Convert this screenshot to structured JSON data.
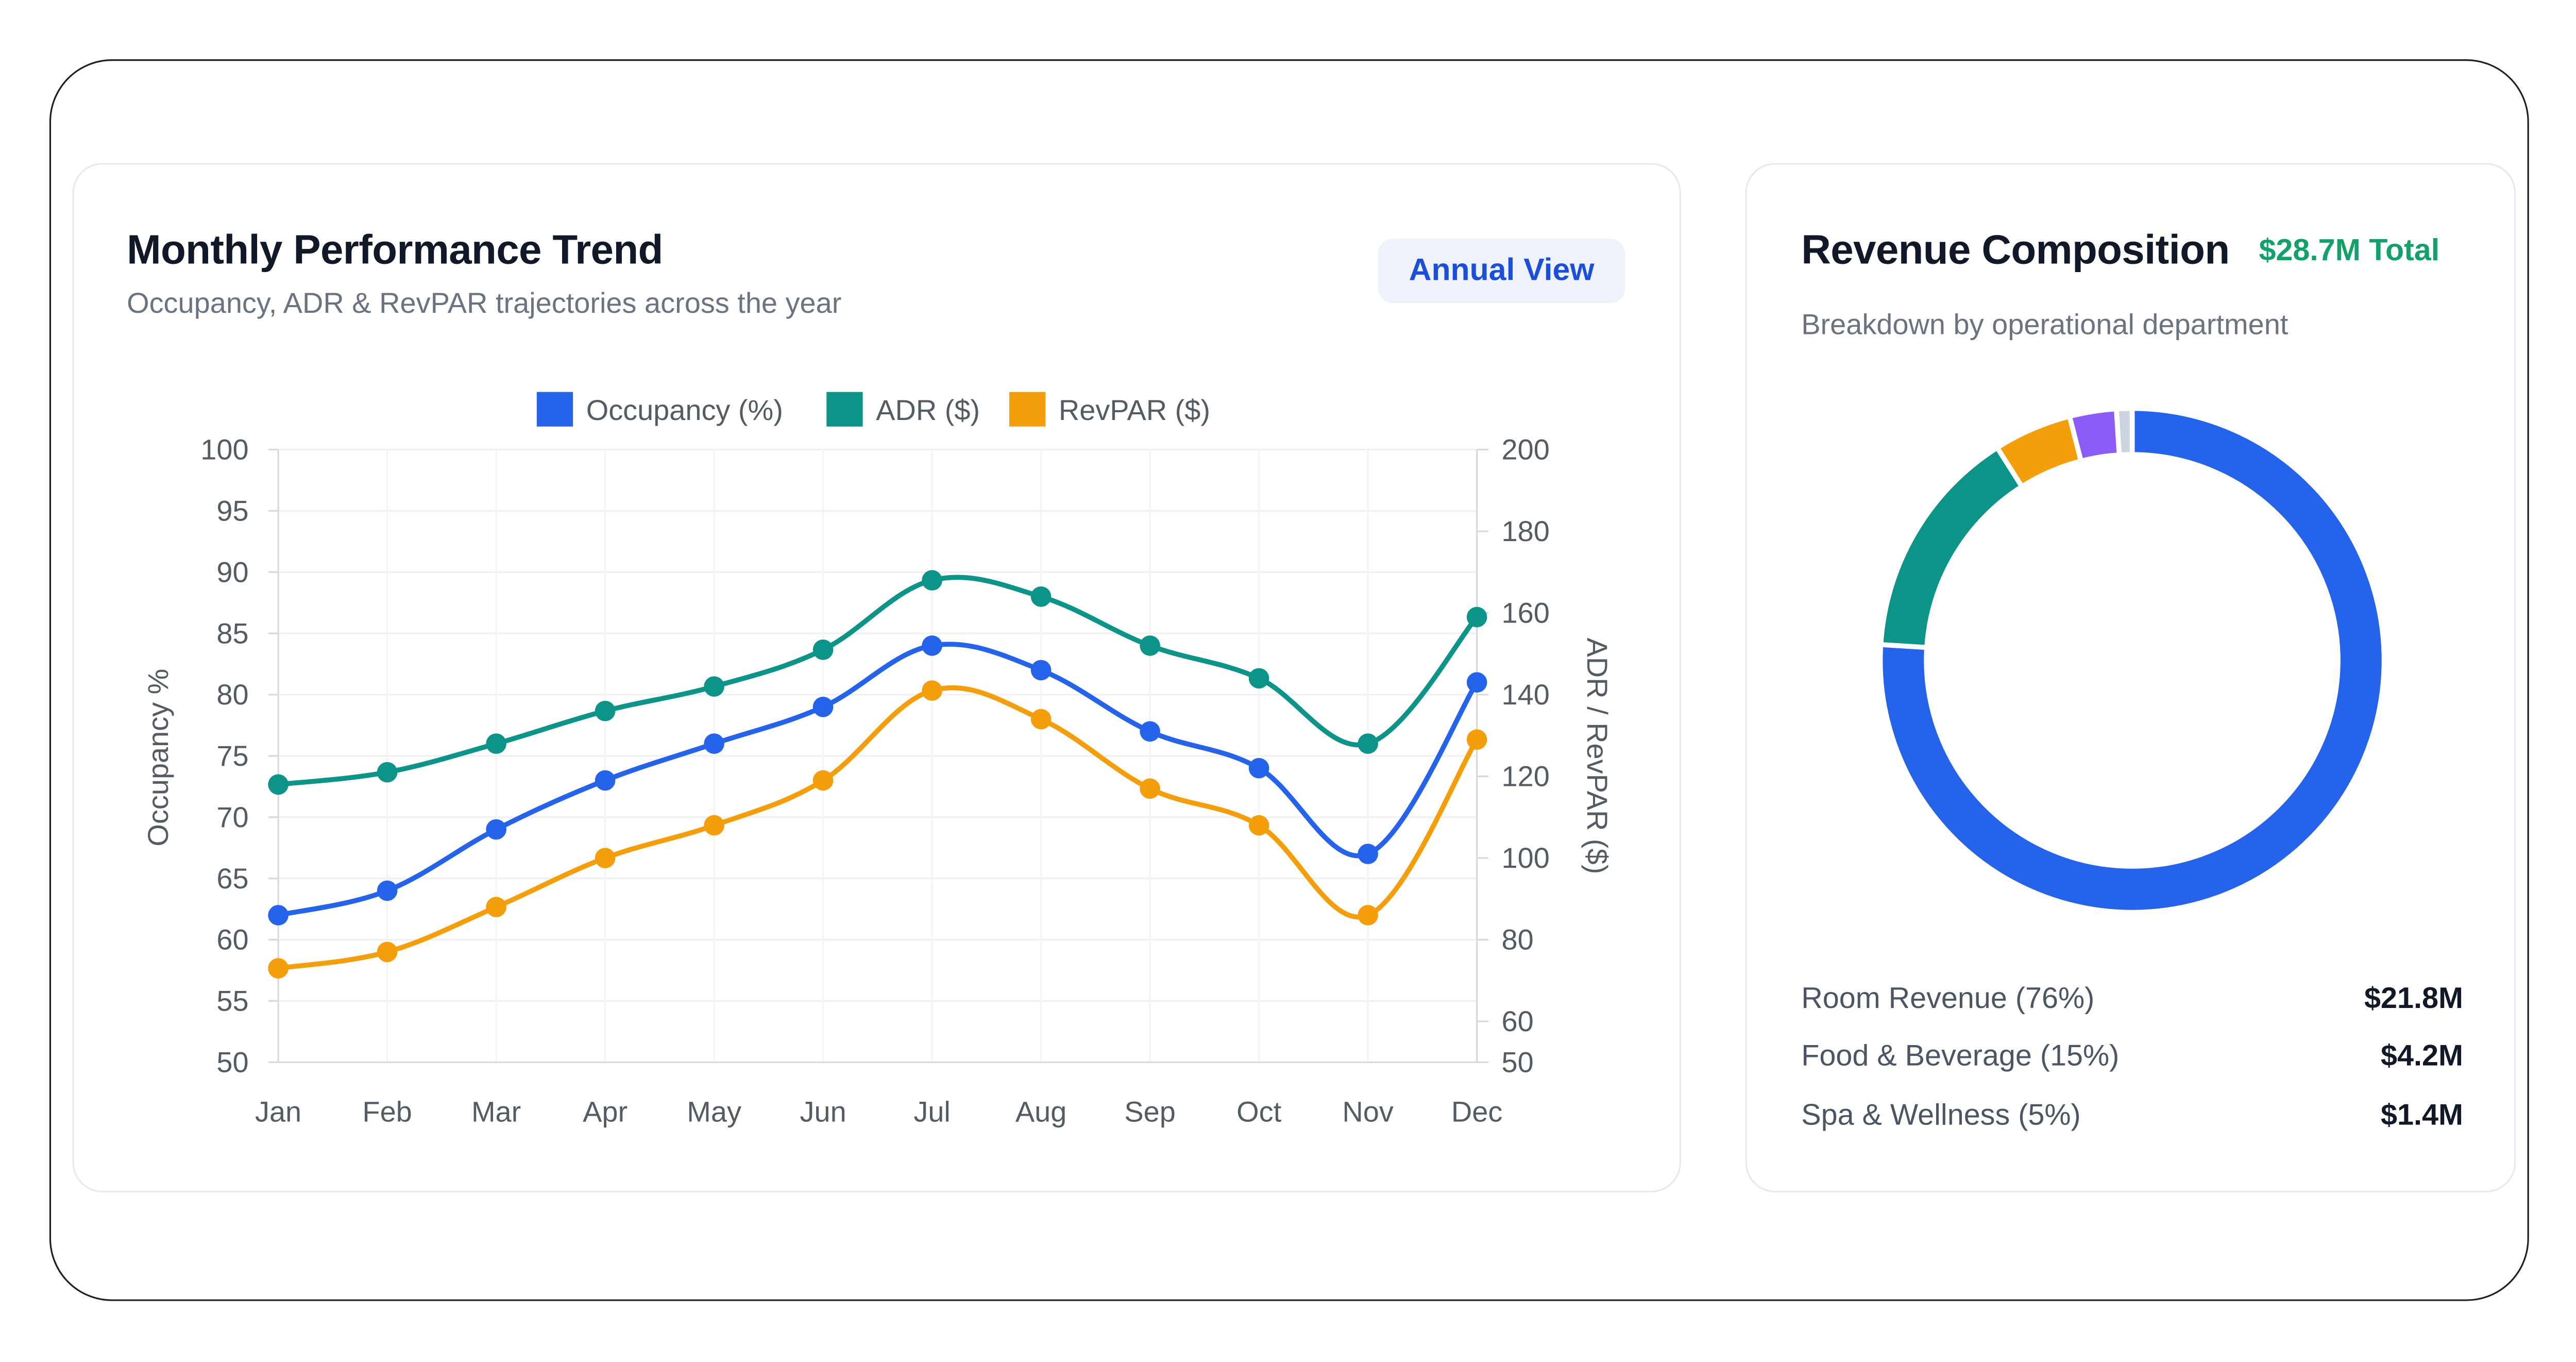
{
  "trend_card": {
    "title": "Monthly Performance Trend",
    "subtitle": "Occupancy, ADR & RevPAR trajectories across the year",
    "badge": "Annual View"
  },
  "revenue_card": {
    "title": "Revenue Composition",
    "total": "$28.7M Total",
    "subtitle": "Breakdown by operational department",
    "breakdown": [
      {
        "label": "Room Revenue (76%)",
        "value": "$21.8M"
      },
      {
        "label": "Food & Beverage (15%)",
        "value": "$4.2M"
      },
      {
        "label": "Spa & Wellness (5%)",
        "value": "$1.4M"
      }
    ]
  },
  "chart_data": [
    {
      "type": "line",
      "x": [
        "Jan",
        "Feb",
        "Mar",
        "Apr",
        "May",
        "Jun",
        "Jul",
        "Aug",
        "Sep",
        "Oct",
        "Nov",
        "Dec"
      ],
      "ylabel": "Occupancy %",
      "y2label": "ADR / RevPAR ($)",
      "ylim": [
        50,
        100
      ],
      "yticks": [
        50,
        55,
        60,
        65,
        70,
        75,
        80,
        85,
        90,
        95,
        100
      ],
      "y2lim": [
        50,
        200
      ],
      "y2ticks": [
        50,
        60,
        80,
        100,
        120,
        140,
        160,
        180,
        200
      ],
      "legend_position": "top",
      "grid": true,
      "series": [
        {
          "name": "Occupancy (%)",
          "axis": "left",
          "color": "#2563eb",
          "values": [
            62,
            64,
            69,
            73,
            76,
            79,
            84,
            82,
            77,
            74,
            67,
            81
          ]
        },
        {
          "name": "ADR ($)",
          "axis": "right",
          "color": "#0d9488",
          "values": [
            118,
            121,
            128,
            136,
            142,
            151,
            168,
            164,
            152,
            144,
            128,
            159
          ]
        },
        {
          "name": "RevPAR ($)",
          "axis": "right",
          "color": "#f59e0b",
          "values": [
            73,
            77,
            88,
            100,
            108,
            119,
            141,
            134,
            117,
            108,
            86,
            129
          ]
        }
      ]
    },
    {
      "type": "pie",
      "donut": true,
      "categories": [
        "Room Revenue",
        "Food & Beverage",
        "Spa & Wellness",
        "",
        ""
      ],
      "values": [
        76,
        15,
        5,
        3,
        1
      ],
      "colors": [
        "#2563eb",
        "#0d9488",
        "#f59e0b",
        "#8b5cf6",
        "#cbd5e1"
      ]
    }
  ]
}
